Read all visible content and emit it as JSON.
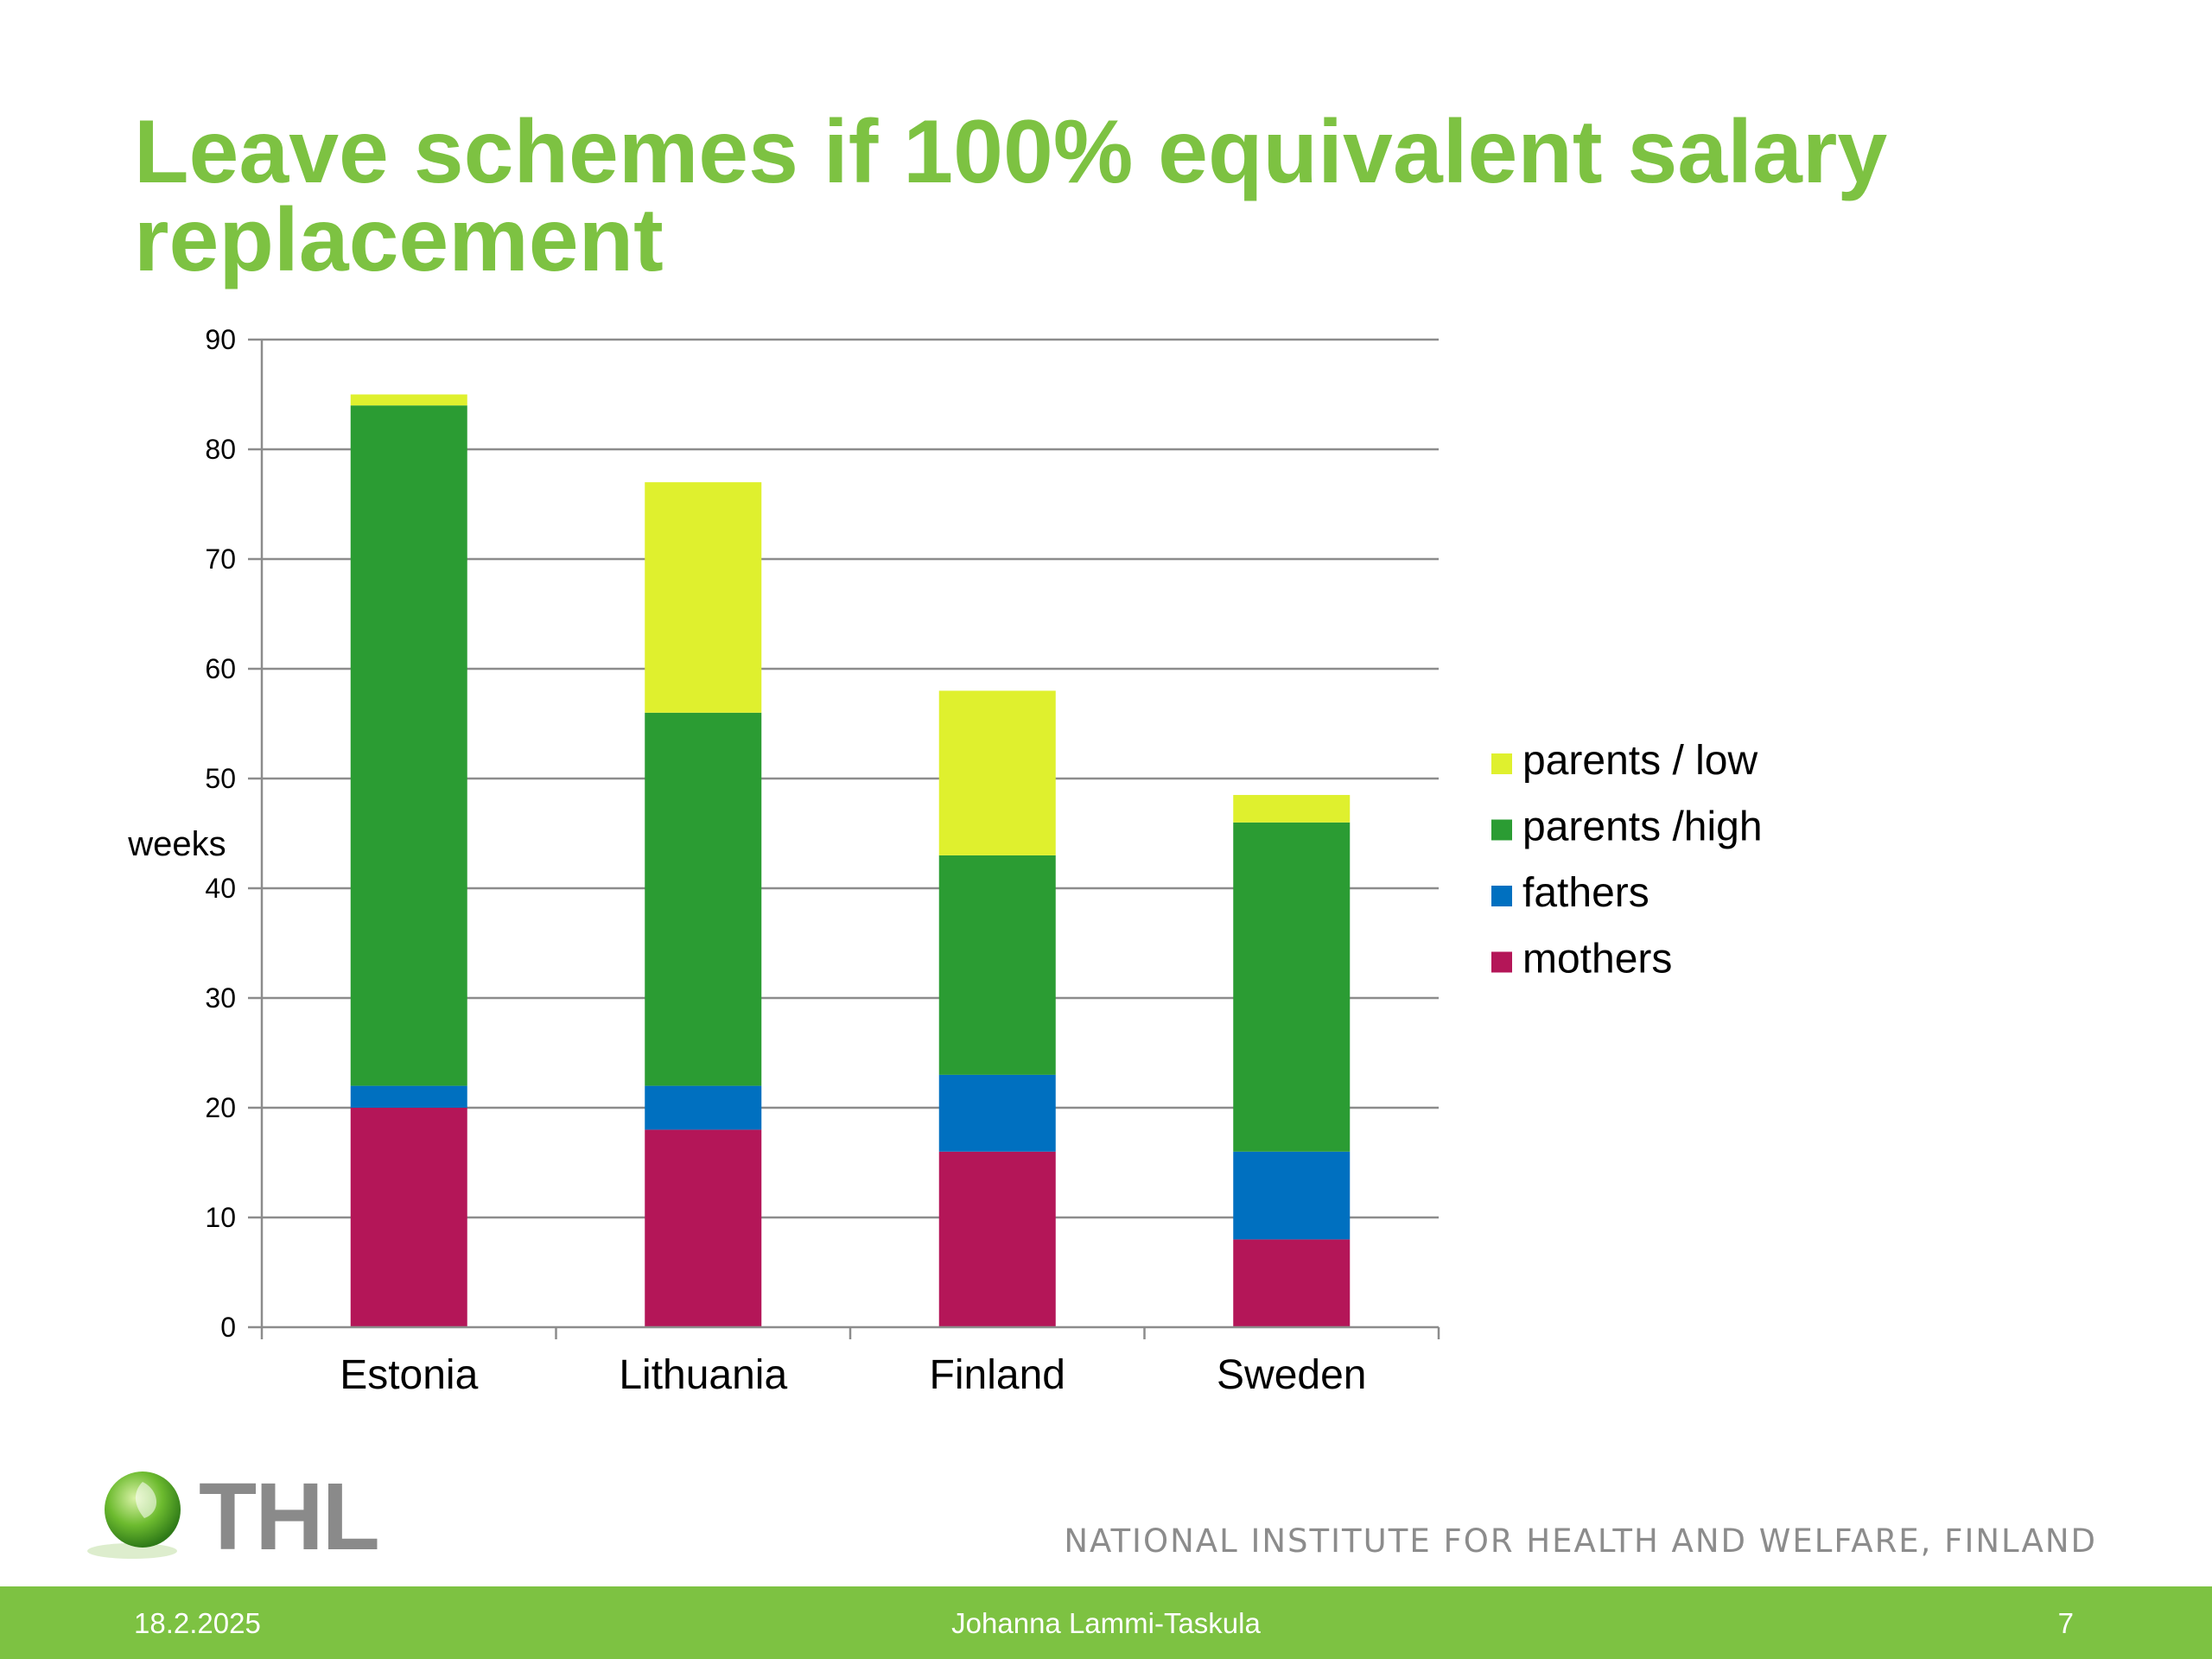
{
  "slide": {
    "title": "Leave schemes if 100% equivalent salary replacement"
  },
  "chart_data": {
    "type": "bar",
    "stacked": true,
    "categories": [
      "Estonia",
      "Lithuania",
      "Finland",
      "Sweden"
    ],
    "series": [
      {
        "name": "mothers",
        "color": "#b41658",
        "values": [
          20,
          18,
          16,
          8
        ]
      },
      {
        "name": "fathers",
        "color": "#0070c0",
        "values": [
          2,
          4,
          7,
          8
        ]
      },
      {
        "name": "parents /high",
        "color": "#2b9c33",
        "values": [
          62,
          34,
          20,
          30
        ]
      },
      {
        "name": "parents / low",
        "color": "#dff02e",
        "values": [
          1,
          21,
          15,
          2.5
        ]
      }
    ],
    "ylabel": "weeks",
    "xlabel": "",
    "ylim": [
      0,
      90
    ],
    "yticks": [
      0,
      10,
      20,
      30,
      40,
      50,
      60,
      70,
      80,
      90
    ],
    "grid": true,
    "legend": "right"
  },
  "branding": {
    "logo_text": "THL",
    "institute": "NATIONAL INSTITUTE FOR HEALTH AND WELFARE, FINLAND"
  },
  "footer": {
    "date": "18.2.2025",
    "author": "Johanna Lammi-Taskula",
    "page": "7"
  },
  "colors": {
    "accent": "#7dc242",
    "grid": "#8c8c8c",
    "branding_text": "#8a8a8a"
  }
}
